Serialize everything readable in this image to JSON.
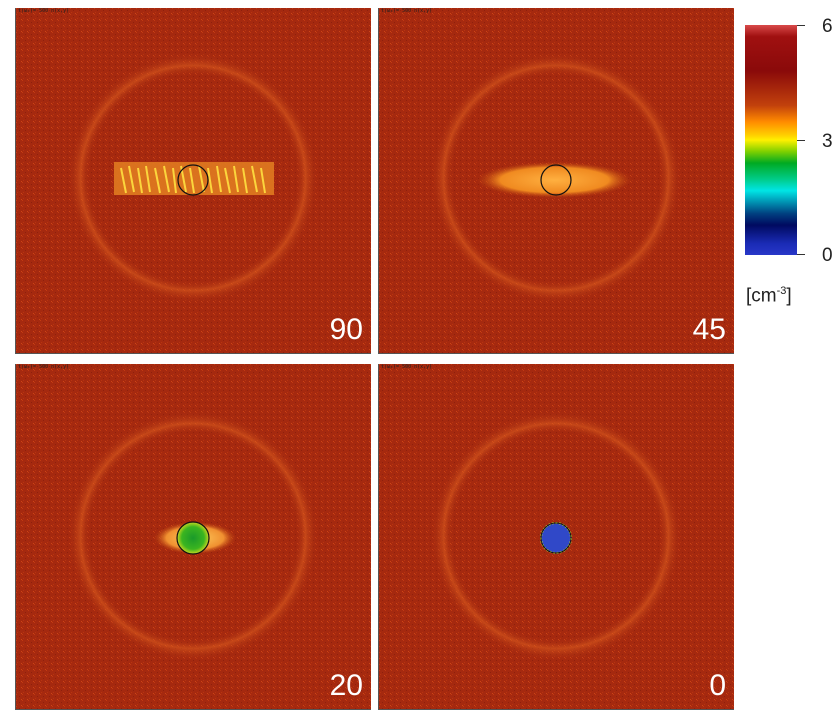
{
  "panels": [
    {
      "id": "p90",
      "label": "90",
      "tag": "t(ω₀)= 500\nn(x,y)"
    },
    {
      "id": "p45",
      "label": "45",
      "tag": "t(ω₀)= 500\nn(x,y)"
    },
    {
      "id": "p20",
      "label": "20",
      "tag": "t(ω₀)= 500\nn(x,y)"
    },
    {
      "id": "p0",
      "label": "0",
      "tag": "t(ω₀)= 500\nn(x,y)"
    }
  ],
  "colorbar": {
    "ticks": [
      "6",
      "3",
      "0"
    ],
    "unit_base": "[cm",
    "unit_exp": "-3",
    "unit_close": "]",
    "colors": {
      "high": "#d94a4a",
      "mid": "#fff000",
      "low": "#2837c8"
    }
  }
}
